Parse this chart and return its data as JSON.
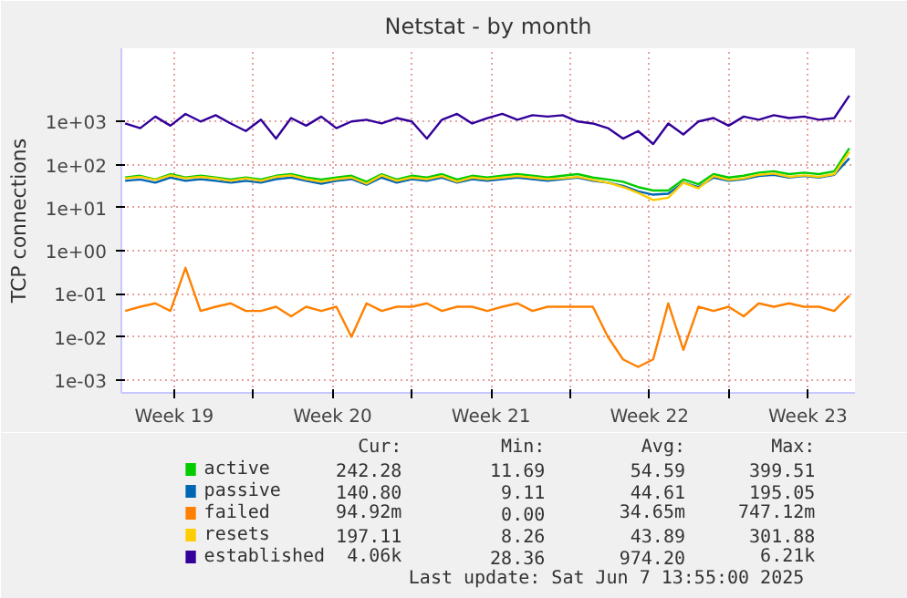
{
  "chart_data": {
    "type": "line",
    "title": "Netstat - by month",
    "ylabel": "TCP connections",
    "log": true,
    "grid": true,
    "legend": "bottom",
    "xlim": [
      "2025-05-06T04:00",
      "2025-06-07T14:00"
    ],
    "xticks": [
      {
        "value": "2025-05-08T12:00",
        "label": "Week 19"
      },
      {
        "value": "2025-05-12",
        "label": null
      },
      {
        "value": "2025-05-15T12:00",
        "label": "Week 20"
      },
      {
        "value": "2025-05-19",
        "label": null
      },
      {
        "value": "2025-05-22T12:00",
        "label": "Week 21"
      },
      {
        "value": "2025-05-26",
        "label": null
      },
      {
        "value": "2025-05-29T12:00",
        "label": "Week 22"
      },
      {
        "value": "2025-06-02",
        "label": null
      },
      {
        "value": "2025-06-05T12:00",
        "label": "Week 23"
      }
    ],
    "ylim": [
      0.0005,
      50000
    ],
    "yticks": [
      {
        "value": 0.001,
        "label": "1e-03"
      },
      {
        "value": 0.01,
        "label": "1e-02"
      },
      {
        "value": 0.1,
        "label": "1e-01"
      },
      {
        "value": 1,
        "label": "1e+00"
      },
      {
        "value": 10,
        "label": "1e+01"
      },
      {
        "value": 100,
        "label": "1e+02"
      },
      {
        "value": 1000,
        "label": "1e+03"
      }
    ],
    "x": [
      "2025-05-06T08:00",
      "2025-05-07T00:00",
      "2025-05-07T16:00",
      "2025-05-08T08:00",
      "2025-05-09T00:00",
      "2025-05-09T16:00",
      "2025-05-10T08:00",
      "2025-05-11T00:00",
      "2025-05-11T16:00",
      "2025-05-12T08:00",
      "2025-05-13T00:00",
      "2025-05-13T16:00",
      "2025-05-14T08:00",
      "2025-05-15T00:00",
      "2025-05-15T16:00",
      "2025-05-16T08:00",
      "2025-05-17T00:00",
      "2025-05-17T16:00",
      "2025-05-18T08:00",
      "2025-05-19T00:00",
      "2025-05-19T16:00",
      "2025-05-20T08:00",
      "2025-05-21T00:00",
      "2025-05-21T16:00",
      "2025-05-22T08:00",
      "2025-05-23T00:00",
      "2025-05-23T16:00",
      "2025-05-24T08:00",
      "2025-05-25T00:00",
      "2025-05-25T16:00",
      "2025-05-26T08:00",
      "2025-05-27T00:00",
      "2025-05-27T16:00",
      "2025-05-28T08:00",
      "2025-05-29T00:00",
      "2025-05-29T16:00",
      "2025-05-30T08:00",
      "2025-05-31T00:00",
      "2025-05-31T16:00",
      "2025-06-01T08:00",
      "2025-06-02T00:00",
      "2025-06-02T16:00",
      "2025-06-03T08:00",
      "2025-06-04T00:00",
      "2025-06-04T16:00",
      "2025-06-05T08:00",
      "2025-06-06T00:00",
      "2025-06-06T16:00",
      "2025-06-07T08:00"
    ],
    "series": [
      {
        "name": "active",
        "color": "#00cc00",
        "values": [
          50,
          55,
          45,
          60,
          50,
          55,
          50,
          45,
          50,
          45,
          55,
          60,
          50,
          45,
          50,
          55,
          40,
          60,
          45,
          55,
          50,
          60,
          45,
          55,
          50,
          55,
          60,
          55,
          50,
          55,
          60,
          50,
          45,
          40,
          30,
          25,
          25,
          45,
          35,
          60,
          50,
          55,
          65,
          70,
          60,
          65,
          60,
          70,
          240
        ]
      },
      {
        "name": "passive",
        "color": "#0066b3",
        "values": [
          42,
          45,
          38,
          50,
          42,
          46,
          42,
          38,
          42,
          38,
          46,
          50,
          42,
          36,
          42,
          46,
          34,
          50,
          38,
          46,
          42,
          50,
          38,
          46,
          42,
          46,
          50,
          46,
          42,
          46,
          50,
          42,
          38,
          32,
          24,
          20,
          21,
          38,
          30,
          50,
          42,
          46,
          54,
          58,
          50,
          54,
          50,
          58,
          140
        ]
      },
      {
        "name": "failed",
        "color": "#ff8000",
        "values": [
          0.04,
          0.05,
          0.06,
          0.04,
          0.4,
          0.04,
          0.05,
          0.06,
          0.04,
          0.04,
          0.05,
          0.03,
          0.05,
          0.04,
          0.05,
          0.01,
          0.06,
          0.04,
          0.05,
          0.05,
          0.06,
          0.04,
          0.05,
          0.05,
          0.04,
          0.05,
          0.06,
          0.04,
          0.05,
          0.05,
          0.05,
          0.05,
          0.01,
          0.003,
          0.002,
          0.003,
          0.06,
          0.005,
          0.05,
          0.04,
          0.05,
          0.03,
          0.06,
          0.05,
          0.06,
          0.05,
          0.05,
          0.04,
          0.09
        ]
      },
      {
        "name": "resets",
        "color": "#ffcc00",
        "values": [
          48,
          52,
          44,
          56,
          48,
          52,
          48,
          42,
          48,
          42,
          52,
          56,
          46,
          40,
          46,
          50,
          36,
          56,
          42,
          50,
          46,
          54,
          40,
          50,
          46,
          50,
          54,
          50,
          46,
          48,
          52,
          44,
          38,
          30,
          22,
          15,
          17,
          38,
          28,
          54,
          44,
          48,
          58,
          62,
          52,
          56,
          52,
          60,
          197
        ]
      },
      {
        "name": "established",
        "color": "#330099",
        "values": [
          900,
          700,
          1300,
          800,
          1500,
          1000,
          1400,
          900,
          600,
          1100,
          400,
          1200,
          800,
          1300,
          700,
          1000,
          1100,
          900,
          1200,
          1000,
          400,
          1100,
          1500,
          900,
          1200,
          1500,
          1100,
          1400,
          1300,
          1400,
          1000,
          900,
          700,
          400,
          600,
          300,
          900,
          500,
          1000,
          1200,
          800,
          1300,
          1100,
          1400,
          1200,
          1300,
          1100,
          1200,
          4000
        ]
      }
    ],
    "annotations": [
      "Cur:",
      "Min:",
      "Avg:",
      "Max:",
      "242.28",
      "11.69",
      "54.59",
      "399.51",
      "140.80",
      "9.11",
      "44.61",
      "195.05",
      "94.92m",
      "0.00",
      "34.65m",
      "747.12m",
      "197.11",
      "8.26",
      "43.89",
      "301.88",
      "4.06k",
      "28.36",
      "974.20",
      "6.21k",
      "Last update: Sat Jun  7 13:55:00 2025"
    ]
  }
}
